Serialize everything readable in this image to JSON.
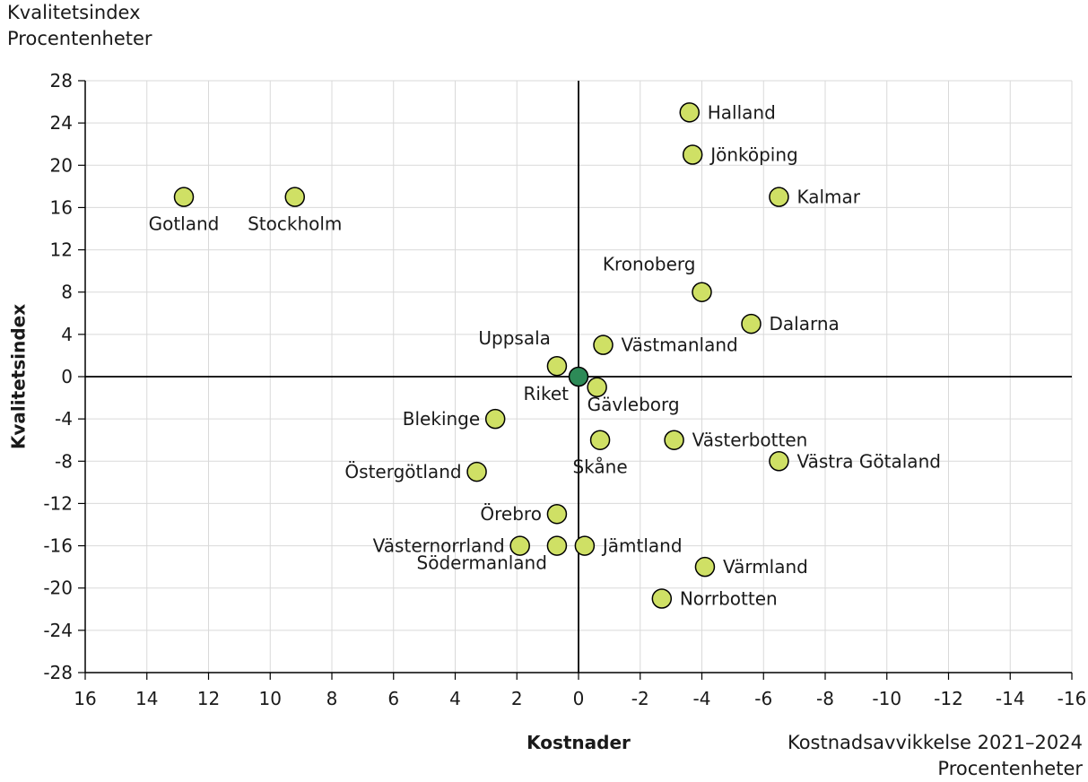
{
  "chart_data": {
    "type": "scatter",
    "ylabel": "Kvalitetsindex",
    "xlabel": "Kostnader",
    "y_unit_title": [
      "Kvalitetsindex",
      "Procentenheter"
    ],
    "x_unit_title": [
      "Kostnadsavvikkelse 2021–2024",
      "Procentenheter"
    ],
    "xlim": [
      16,
      -16
    ],
    "ylim": [
      -28,
      28
    ],
    "x_reversed": true,
    "x_ticks": [
      16,
      14,
      12,
      10,
      8,
      6,
      4,
      2,
      0,
      -2,
      -4,
      -6,
      -8,
      -10,
      -12,
      -14,
      -16
    ],
    "y_ticks": [
      28,
      24,
      20,
      16,
      12,
      8,
      4,
      0,
      -4,
      -8,
      -12,
      -16,
      -20,
      -24,
      -28
    ],
    "x_tick_labels": [
      "16",
      "14",
      "12",
      "10",
      "8",
      "6",
      "4",
      "2",
      "0",
      "-2",
      "-4",
      "-6",
      "-8",
      "-10",
      "-12",
      "-14",
      "-16"
    ],
    "y_tick_labels": [
      "28",
      "24",
      "20",
      "16",
      "12",
      "8",
      "4",
      "0",
      "-4",
      "-8",
      "-12",
      "-16",
      "-20",
      "-24",
      "-28"
    ],
    "grid": true,
    "colors": {
      "point": "#cfe065",
      "reference": "#2d8a57",
      "grid": "#d9d9d9",
      "axis": "#000000"
    },
    "points": [
      {
        "name": "Halland",
        "x": -3.6,
        "y": 25,
        "label_pos": "right"
      },
      {
        "name": "Jönköping",
        "x": -3.7,
        "y": 21,
        "label_pos": "right"
      },
      {
        "name": "Kalmar",
        "x": -6.5,
        "y": 17,
        "label_pos": "right"
      },
      {
        "name": "Gotland",
        "x": 12.8,
        "y": 17,
        "label_pos": "below"
      },
      {
        "name": "Stockholm",
        "x": 9.2,
        "y": 17,
        "label_pos": "below"
      },
      {
        "name": "Kronoberg",
        "x": -4.0,
        "y": 8,
        "label_pos": "above-left"
      },
      {
        "name": "Dalarna",
        "x": -5.6,
        "y": 5,
        "label_pos": "right"
      },
      {
        "name": "Västmanland",
        "x": -0.8,
        "y": 3,
        "label_pos": "right"
      },
      {
        "name": "Uppsala",
        "x": 0.7,
        "y": 1,
        "label_pos": "above-left"
      },
      {
        "name": "Riket",
        "x": 0,
        "y": 0,
        "label_pos": "below-left",
        "reference": true
      },
      {
        "name": "Gävleborg",
        "x": -0.6,
        "y": -1,
        "label_pos": "below-right"
      },
      {
        "name": "Blekinge",
        "x": 2.7,
        "y": -4,
        "label_pos": "left"
      },
      {
        "name": "Skåne",
        "x": -0.7,
        "y": -6,
        "label_pos": "below"
      },
      {
        "name": "Västerbotten",
        "x": -3.1,
        "y": -6,
        "label_pos": "right"
      },
      {
        "name": "Västra Götaland",
        "x": -6.5,
        "y": -8,
        "label_pos": "right"
      },
      {
        "name": "Östergötland",
        "x": 3.3,
        "y": -9,
        "label_pos": "left"
      },
      {
        "name": "Örebro",
        "x": 0.7,
        "y": -13,
        "label_pos": "left"
      },
      {
        "name": "Västernorrland",
        "x": 1.9,
        "y": -16,
        "label_pos": "left"
      },
      {
        "name": "Södermanland",
        "x": 0.7,
        "y": -16,
        "label_pos": "below-left"
      },
      {
        "name": "Jämtland",
        "x": -0.2,
        "y": -16,
        "label_pos": "right"
      },
      {
        "name": "Värmland",
        "x": -4.1,
        "y": -18,
        "label_pos": "right"
      },
      {
        "name": "Norrbotten",
        "x": -2.7,
        "y": -21,
        "label_pos": "right"
      }
    ]
  }
}
